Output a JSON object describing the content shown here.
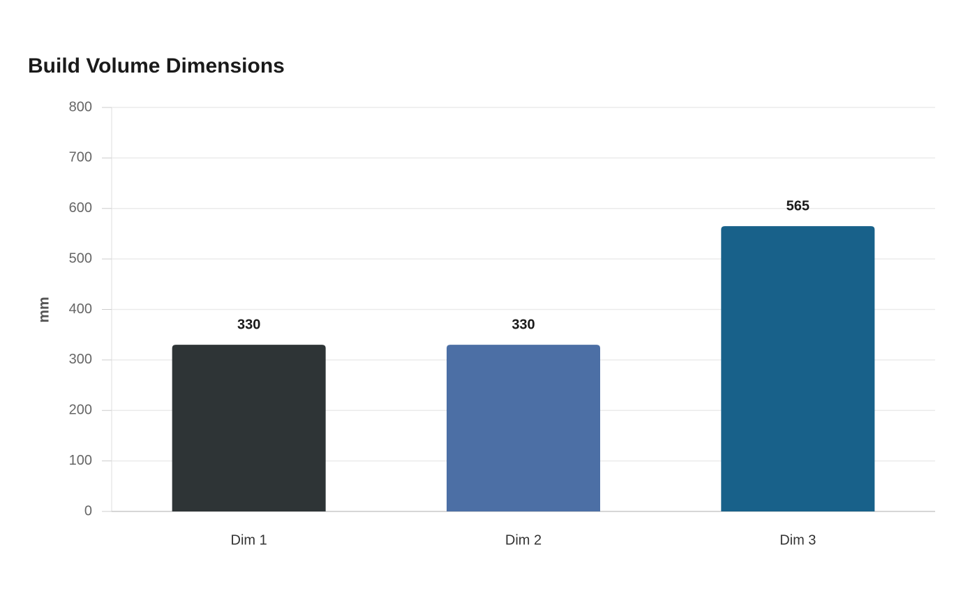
{
  "chart_data": {
    "type": "bar",
    "title": "Build Volume Dimensions",
    "y_label": "mm",
    "categories": [
      "Dim 1",
      "Dim 2",
      "Dim 3"
    ],
    "values": [
      330,
      330,
      565
    ],
    "colors": [
      "#2e3436",
      "#4c6fa5",
      "#18618a"
    ],
    "ylim": [
      0,
      800
    ],
    "yticks": [
      0,
      100,
      200,
      300,
      400,
      500,
      600,
      700,
      800
    ],
    "grid": true
  }
}
